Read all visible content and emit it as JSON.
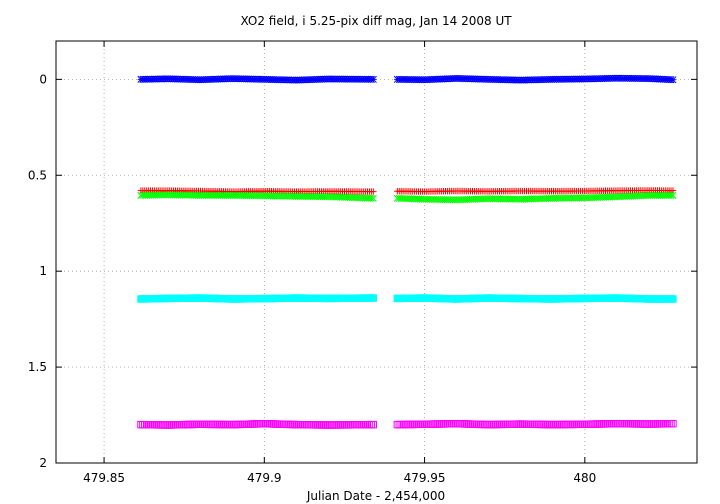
{
  "chart_data": {
    "type": "scatter",
    "title": "XO2 field, i 5.25-pix diff mag, Jan 14 2008 UT",
    "xlabel": "Julian Date - 2,454,000",
    "ylabel": "",
    "xlim": [
      479.835,
      480.035
    ],
    "ylim": [
      2,
      -0.2
    ],
    "y_inverted": true,
    "grid": true,
    "legend": "none",
    "x_ticks": [
      479.85,
      479.9,
      479.95,
      480
    ],
    "x_tick_labels": [
      "479.85",
      "479.9",
      "479.95",
      "480"
    ],
    "y_ticks": [
      0,
      0.5,
      1,
      1.5,
      2
    ],
    "y_tick_labels": [
      "0",
      "0.5",
      "1",
      "1.5",
      "2"
    ],
    "segments": [
      [
        479.8615,
        479.934
      ],
      [
        479.9415,
        480.0275
      ]
    ],
    "series": [
      {
        "marker": "star",
        "color": "#0000ff",
        "x": [
          479.8615,
          479.87,
          479.88,
          479.89,
          479.9,
          479.91,
          479.92,
          479.934,
          479.9415,
          479.95,
          479.96,
          479.97,
          479.98,
          479.99,
          480.0,
          480.01,
          480.02,
          480.0275
        ],
        "y": [
          0.0,
          -0.003,
          0.002,
          -0.004,
          0.0,
          0.004,
          -0.002,
          0.0,
          0.0,
          0.002,
          -0.005,
          0.0,
          0.004,
          0.0,
          -0.002,
          -0.006,
          -0.004,
          0.002
        ]
      },
      {
        "marker": "plus",
        "color": "#ff0000",
        "x": [
          479.8615,
          479.87,
          479.88,
          479.89,
          479.9,
          479.91,
          479.92,
          479.934,
          479.9415,
          479.95,
          479.96,
          479.97,
          479.98,
          479.99,
          480.0,
          480.01,
          480.02,
          480.0275
        ],
        "y": [
          0.58,
          0.58,
          0.582,
          0.585,
          0.583,
          0.585,
          0.584,
          0.585,
          0.583,
          0.585,
          0.582,
          0.584,
          0.582,
          0.583,
          0.582,
          0.58,
          0.579,
          0.58
        ]
      },
      {
        "marker": "cross",
        "color": "#00ff00",
        "x": [
          479.8615,
          479.87,
          479.88,
          479.89,
          479.9,
          479.91,
          479.92,
          479.934,
          479.9415,
          479.95,
          479.96,
          479.97,
          479.98,
          479.99,
          480.0,
          480.01,
          480.02,
          480.0275
        ],
        "y": [
          0.605,
          0.602,
          0.605,
          0.605,
          0.607,
          0.61,
          0.612,
          0.62,
          0.62,
          0.625,
          0.628,
          0.622,
          0.625,
          0.62,
          0.618,
          0.612,
          0.605,
          0.605
        ]
      },
      {
        "marker": "filled-square",
        "color": "#00ffff",
        "x": [
          479.8615,
          479.87,
          479.88,
          479.89,
          479.9,
          479.91,
          479.92,
          479.934,
          479.9415,
          479.95,
          479.96,
          479.97,
          479.98,
          479.99,
          480.0,
          480.01,
          480.02,
          480.0275
        ],
        "y": [
          1.145,
          1.142,
          1.14,
          1.145,
          1.143,
          1.14,
          1.142,
          1.14,
          1.142,
          1.14,
          1.145,
          1.14,
          1.143,
          1.145,
          1.142,
          1.14,
          1.145,
          1.145
        ]
      },
      {
        "marker": "open-square",
        "color": "#ff00ff",
        "x": [
          479.8615,
          479.87,
          479.88,
          479.89,
          479.9,
          479.91,
          479.92,
          479.934,
          479.9415,
          479.95,
          479.96,
          479.97,
          479.98,
          479.99,
          480.0,
          480.01,
          480.02,
          480.0275
        ],
        "y": [
          1.8,
          1.802,
          1.798,
          1.8,
          1.795,
          1.8,
          1.802,
          1.8,
          1.8,
          1.798,
          1.795,
          1.8,
          1.797,
          1.8,
          1.798,
          1.795,
          1.797,
          1.795
        ]
      }
    ]
  }
}
